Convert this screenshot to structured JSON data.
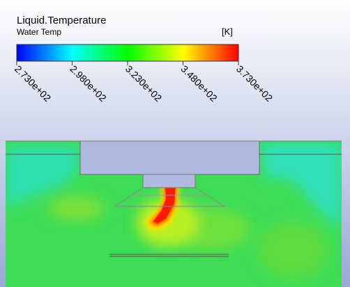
{
  "legend": {
    "title": "Liquid.Temperature",
    "variable": "Water Temp",
    "unit": "[K]",
    "range": [
      273,
      373
    ],
    "ticks": [
      {
        "value": 273,
        "label": "2.730e+02"
      },
      {
        "value": 298,
        "label": "2.980e+02"
      },
      {
        "value": 323,
        "label": "3.230e+02"
      },
      {
        "value": 348,
        "label": "3.480e+02"
      },
      {
        "value": 373,
        "label": "3.730e+02"
      }
    ]
  }
}
